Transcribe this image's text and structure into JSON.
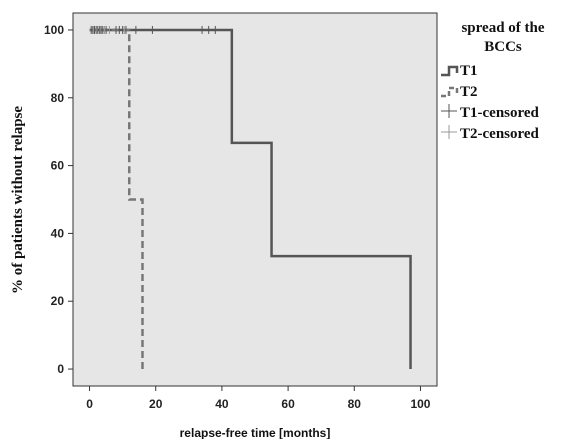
{
  "chart_data": {
    "type": "line",
    "chart_kind": "kaplan-meier",
    "xlabel": "relapse-free time [months]",
    "ylabel": "% of patients without relapse",
    "xlim": [
      -5,
      105
    ],
    "ylim": [
      -5,
      105
    ],
    "xticks": [
      0,
      20,
      40,
      60,
      80,
      100
    ],
    "yticks": [
      0,
      20,
      40,
      60,
      80,
      100
    ],
    "grid": false,
    "plot_background": "#e6e6e6",
    "legend": {
      "title": "spread of the BCCs",
      "title_lines": [
        "spread of the",
        "BCCs"
      ],
      "placement": "right",
      "entries": [
        "T1",
        "T2",
        "T1-censored",
        "T2-censored"
      ]
    },
    "series": [
      {
        "name": "T1",
        "style": "solid",
        "color": "#555555",
        "steps": [
          {
            "x": 0,
            "y": 100
          },
          {
            "x": 43,
            "y": 66.7
          },
          {
            "x": 55,
            "y": 33.3
          },
          {
            "x": 97,
            "y": 0
          }
        ],
        "end_x": 97
      },
      {
        "name": "T2",
        "style": "dashed",
        "color": "#777777",
        "steps": [
          {
            "x": 0,
            "y": 100
          },
          {
            "x": 12,
            "y": 50
          },
          {
            "x": 16,
            "y": 0
          }
        ],
        "end_x": 16
      }
    ],
    "censored": [
      {
        "name": "T1-censored",
        "color": "#555555",
        "y": 100,
        "x": [
          0.5,
          1,
          1.5,
          2,
          2.5,
          3,
          3.5,
          4,
          5,
          8,
          9,
          10,
          11,
          14,
          19,
          34,
          36,
          38
        ]
      },
      {
        "name": "T2-censored",
        "color": "#999999",
        "y": 100,
        "x": [
          1.2,
          2.2,
          3.2,
          4.5,
          6,
          10.5
        ]
      }
    ]
  }
}
